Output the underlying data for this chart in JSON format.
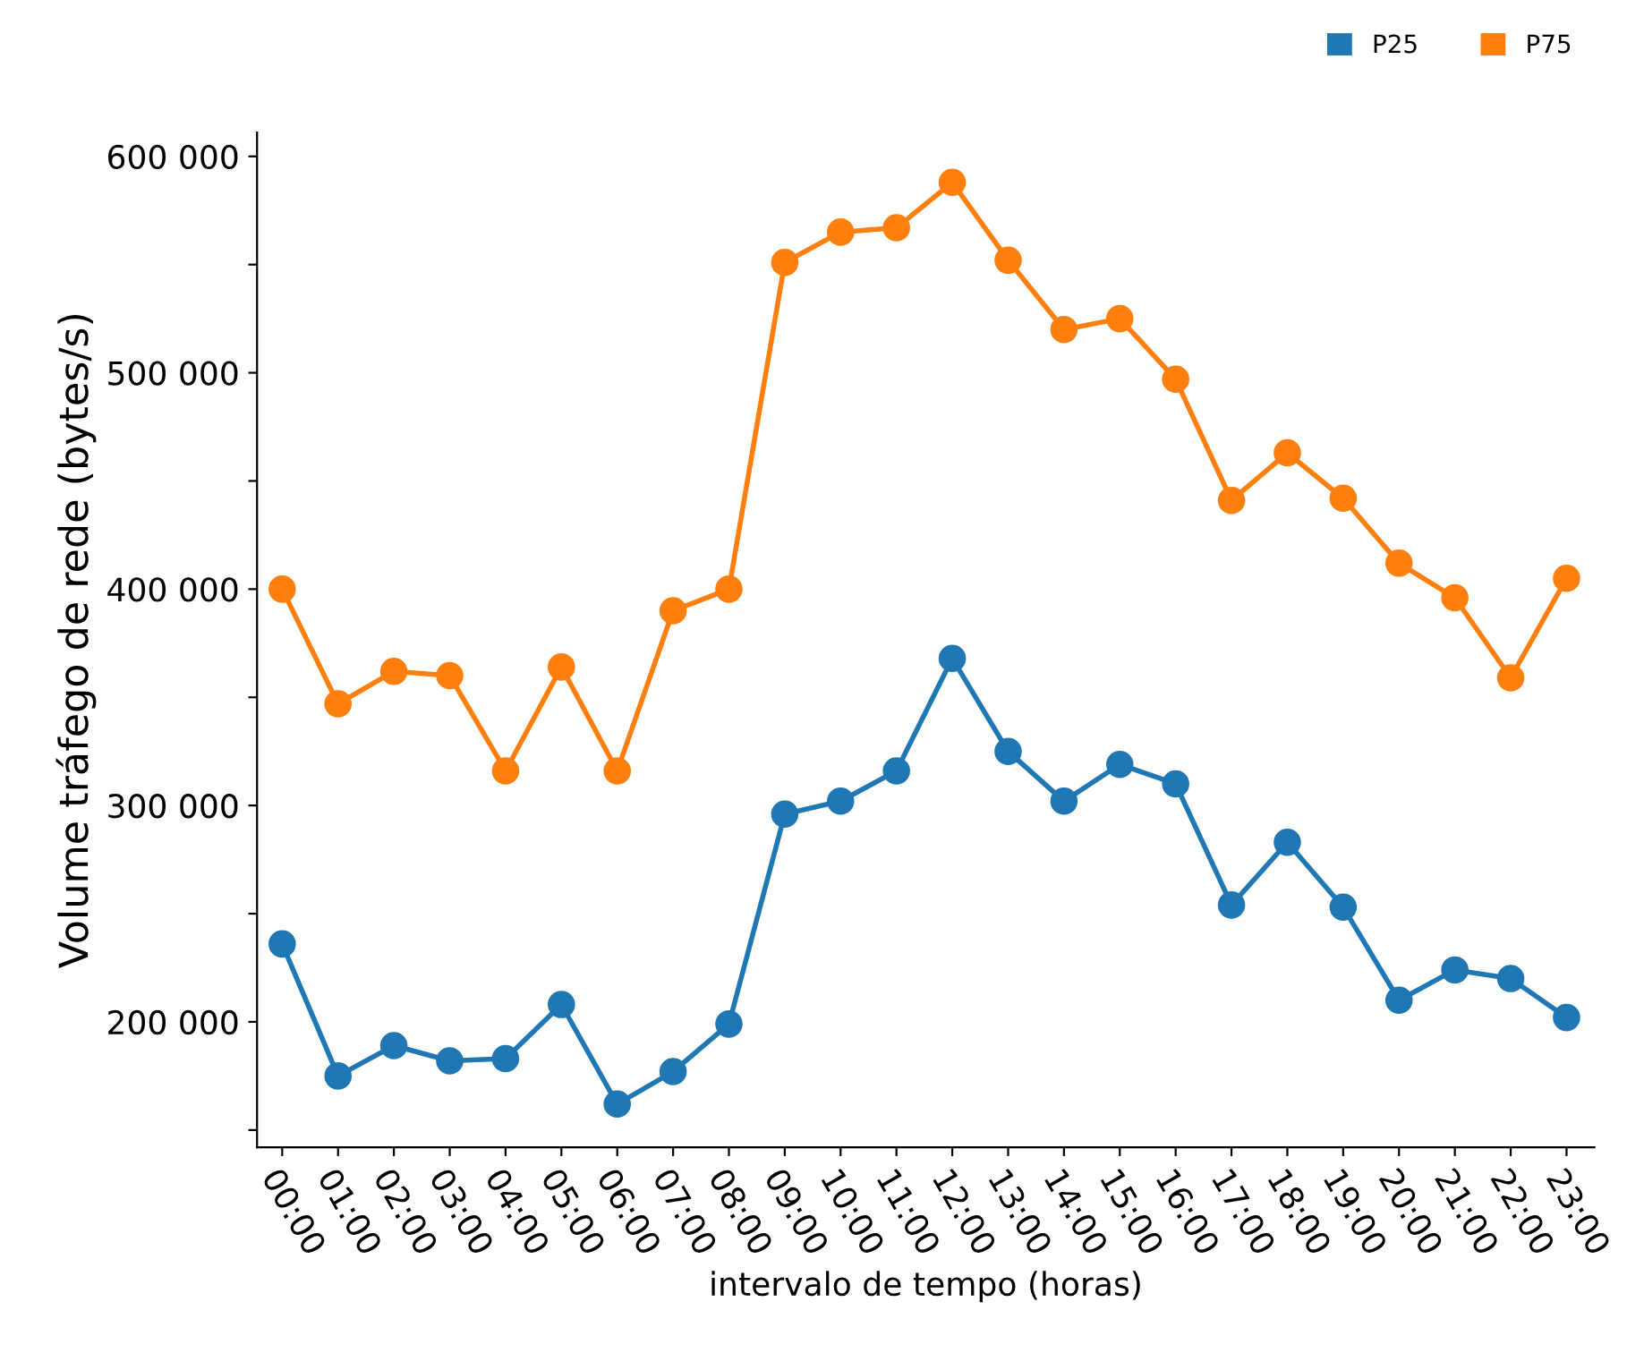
{
  "chart_data": {
    "type": "line",
    "xlabel": "intervalo de tempo (horas)",
    "ylabel": "Volume tráfego de rede (bytes/s)",
    "categories": [
      "00:00",
      "01:00",
      "02:00",
      "03:00",
      "04:00",
      "05:00",
      "06:00",
      "07:00",
      "08:00",
      "09:00",
      "10:00",
      "11:00",
      "12:00",
      "13:00",
      "14:00",
      "15:00",
      "16:00",
      "17:00",
      "18:00",
      "19:00",
      "20:00",
      "21:00",
      "22:00",
      "23:00"
    ],
    "series": [
      {
        "name": "P25",
        "color": "#1f77b4",
        "values": [
          236000,
          175000,
          189000,
          182000,
          183000,
          208000,
          162000,
          177000,
          199000,
          296000,
          302000,
          316000,
          368000,
          325000,
          302000,
          319000,
          310000,
          254000,
          283000,
          253000,
          210000,
          224000,
          220000,
          202000
        ]
      },
      {
        "name": "P75",
        "color": "#ff7f0e",
        "values": [
          400000,
          347000,
          362000,
          360000,
          316000,
          364000,
          316000,
          390000,
          400000,
          551000,
          565000,
          567000,
          588000,
          552000,
          520000,
          525000,
          497000,
          441000,
          463000,
          442000,
          412000,
          396000,
          359000,
          405000
        ]
      }
    ],
    "ylim": [
      142000,
      611000
    ],
    "yticks": [
      {
        "value": 150000,
        "label": null
      },
      {
        "value": 200000,
        "label": "200 000"
      },
      {
        "value": 250000,
        "label": null
      },
      {
        "value": 300000,
        "label": "300 000"
      },
      {
        "value": 350000,
        "label": null
      },
      {
        "value": 400000,
        "label": "400 000"
      },
      {
        "value": 450000,
        "label": null
      },
      {
        "value": 500000,
        "label": "500 000"
      },
      {
        "value": 550000,
        "label": null
      },
      {
        "value": 600000,
        "label": "600 000"
      }
    ],
    "marker": "circle",
    "line_style": "solid",
    "grid": false,
    "legend": "top right"
  }
}
